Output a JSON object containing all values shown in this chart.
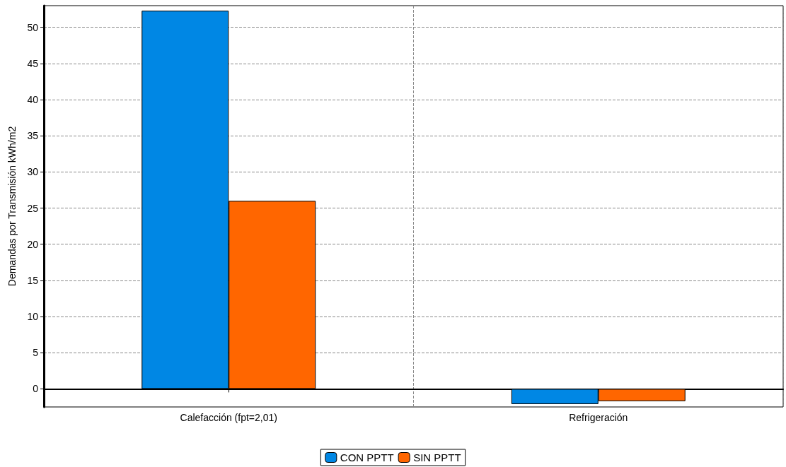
{
  "chart_data": {
    "type": "bar",
    "ylabel": "Demandas por Transmisión kWh/m2",
    "categories": [
      "Calefacción (fpt=2,01)",
      "Refrigeración"
    ],
    "series": [
      {
        "name": "CON PPTT",
        "color": "#0087e4",
        "values": [
          52.3,
          -2.1
        ]
      },
      {
        "name": "SIN PPTT",
        "color": "#ff6600",
        "values": [
          26,
          -1.7
        ]
      }
    ],
    "ylim": [
      -2.5,
      53
    ],
    "yticks": [
      0,
      5,
      10,
      15,
      20,
      25,
      30,
      35,
      40,
      45,
      50
    ],
    "grid": true,
    "legend": "bottom"
  }
}
